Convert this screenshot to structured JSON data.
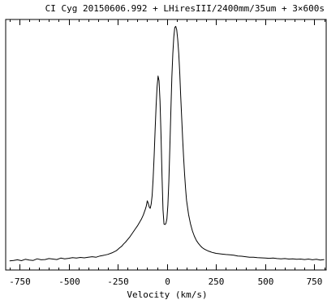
{
  "chart_data": {
    "type": "line",
    "title": "CI Cyg 20150606.992 + LHiresIII/2400mm/35um + 3×600s",
    "xlabel": "Velocity (km/s)",
    "ylabel": "",
    "xlim": [
      -820,
      810
    ],
    "ylim": [
      0,
      1
    ],
    "x_ticks": [
      -750,
      -500,
      -250,
      0,
      250,
      500,
      750
    ],
    "x_tick_labels": [
      "-750",
      "-500",
      "-250",
      "0",
      "250",
      "500",
      "750"
    ],
    "grid": false,
    "colors": {
      "line": "#000000",
      "axes": "#000000",
      "background": "#ffffff"
    },
    "series": [
      {
        "x": [
          -800,
          -780,
          -760,
          -740,
          -720,
          -700,
          -680,
          -660,
          -640,
          -620,
          -600,
          -580,
          -560,
          -540,
          -520,
          -500,
          -480,
          -460,
          -440,
          -420,
          -400,
          -380,
          -360,
          -340,
          -320,
          -300,
          -280,
          -260,
          -250,
          -240,
          -230,
          -220,
          -210,
          -200,
          -190,
          -180,
          -170,
          -160,
          -150,
          -140,
          -130,
          -120,
          -110,
          -105,
          -100,
          -95,
          -90,
          -85,
          -80,
          -75,
          -70,
          -65,
          -60,
          -55,
          -50,
          -45,
          -40,
          -35,
          -30,
          -25,
          -20,
          -15,
          -10,
          -5,
          0,
          5,
          10,
          15,
          20,
          25,
          30,
          35,
          40,
          45,
          50,
          55,
          60,
          65,
          70,
          75,
          80,
          85,
          90,
          95,
          100,
          110,
          120,
          130,
          140,
          150,
          160,
          170,
          180,
          190,
          200,
          210,
          220,
          230,
          240,
          250,
          260,
          280,
          300,
          320,
          340,
          360,
          380,
          400,
          420,
          440,
          460,
          480,
          500,
          520,
          540,
          560,
          580,
          600,
          620,
          640,
          660,
          680,
          700,
          720,
          740,
          760,
          780,
          800
        ],
        "y": [
          0.004,
          0.006,
          0.009,
          0.005,
          0.011,
          0.008,
          0.006,
          0.013,
          0.009,
          0.01,
          0.014,
          0.012,
          0.01,
          0.016,
          0.013,
          0.015,
          0.018,
          0.016,
          0.019,
          0.017,
          0.02,
          0.022,
          0.02,
          0.025,
          0.028,
          0.032,
          0.038,
          0.046,
          0.052,
          0.06,
          0.066,
          0.076,
          0.084,
          0.094,
          0.104,
          0.116,
          0.128,
          0.14,
          0.152,
          0.166,
          0.18,
          0.198,
          0.222,
          0.236,
          0.258,
          0.248,
          0.232,
          0.226,
          0.244,
          0.28,
          0.35,
          0.45,
          0.56,
          0.66,
          0.74,
          0.785,
          0.765,
          0.68,
          0.54,
          0.36,
          0.22,
          0.16,
          0.158,
          0.162,
          0.182,
          0.24,
          0.34,
          0.48,
          0.64,
          0.78,
          0.88,
          0.95,
          0.99,
          0.995,
          0.98,
          0.94,
          0.88,
          0.8,
          0.7,
          0.61,
          0.52,
          0.44,
          0.37,
          0.31,
          0.26,
          0.2,
          0.16,
          0.13,
          0.108,
          0.09,
          0.078,
          0.068,
          0.06,
          0.054,
          0.05,
          0.046,
          0.043,
          0.04,
          0.038,
          0.036,
          0.035,
          0.033,
          0.031,
          0.03,
          0.028,
          0.025,
          0.024,
          0.022,
          0.02,
          0.02,
          0.018,
          0.017,
          0.016,
          0.015,
          0.016,
          0.014,
          0.013,
          0.014,
          0.012,
          0.013,
          0.011,
          0.012,
          0.01,
          0.012,
          0.009,
          0.011,
          0.008,
          0.01
        ]
      }
    ]
  }
}
